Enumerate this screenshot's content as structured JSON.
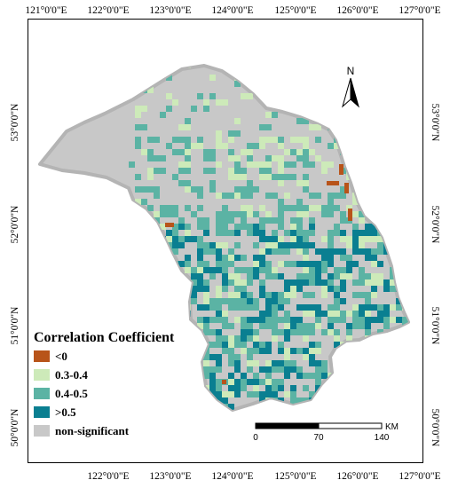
{
  "map": {
    "top_lon_labels": [
      "121°0'0\"E",
      "122°0'0\"E",
      "123°0'0\"E",
      "124°0'0\"E",
      "125°0'0\"E",
      "126°0'0\"E",
      "127°0'0\"E"
    ],
    "bottom_lon_labels": [
      "122°0'0\"E",
      "123°0'0\"E",
      "124°0'0\"E",
      "125°0'0\"E",
      "126°0'0\"E",
      "127°0'0\"E"
    ],
    "left_lat_labels": [
      "53°0'0\"N",
      "52°0'0\"N",
      "51°0'0\"N",
      "50°0'0\"N"
    ],
    "right_lat_labels": [
      "53°0'0\"N",
      "52°0'0\"N",
      "51°0'0\"N",
      "50°0'0\"N"
    ],
    "north_label": "N",
    "scale": {
      "labels": [
        "0",
        "70",
        "140"
      ],
      "unit": "KM"
    },
    "legend": {
      "title": "Correlation Coefficient",
      "items": [
        {
          "label": "<0",
          "color": "#b8541a"
        },
        {
          "label": "0.3-0.4",
          "color": "#cdeab9"
        },
        {
          "label": "0.4-0.5",
          "color": "#5bb3a4"
        },
        {
          "label": ">0.5",
          "color": "#0a7f91"
        },
        {
          "label": "non-significant",
          "color": "#c8c8c8"
        }
      ]
    },
    "colors": {
      "region_fill": "#c8c8c8",
      "region_outline": "#b4b4b4",
      "frame": "#000000"
    }
  }
}
